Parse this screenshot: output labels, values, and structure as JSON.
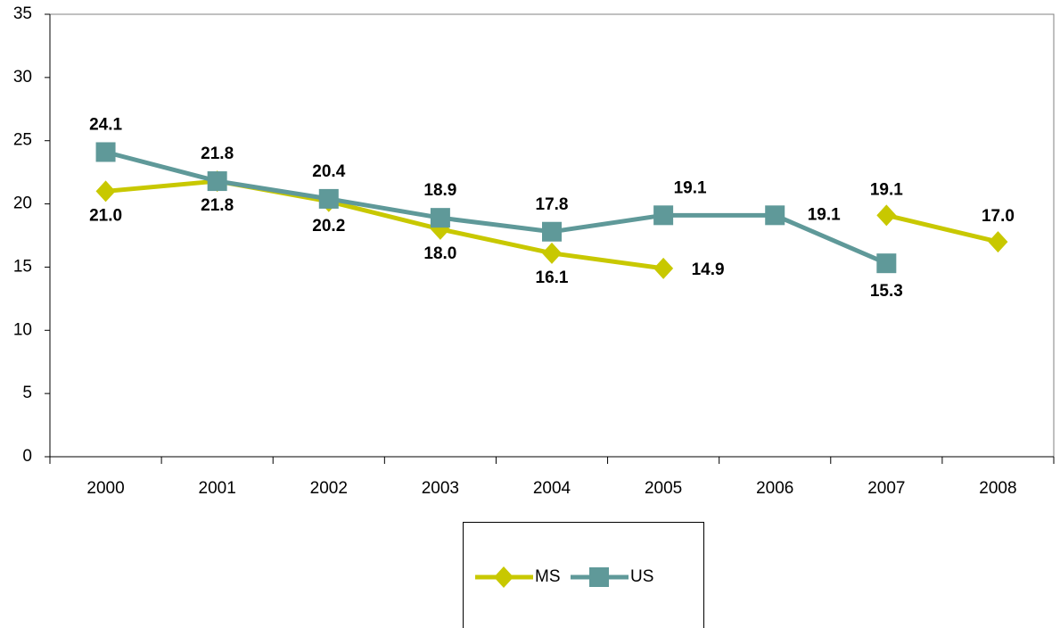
{
  "chart_data": {
    "type": "line",
    "categories": [
      "2000",
      "2001",
      "2002",
      "2003",
      "2004",
      "2005",
      "2006",
      "2007",
      "2008"
    ],
    "series": [
      {
        "name": "MS",
        "color": "#c8c800",
        "values": [
          21.0,
          21.8,
          20.2,
          18.0,
          16.1,
          14.9,
          null,
          19.1,
          17.0
        ],
        "value_labels": [
          "21.0",
          "21.8",
          "20.2",
          "18.0",
          "16.1",
          "14.9",
          null,
          "19.1",
          "17.0"
        ]
      },
      {
        "name": "US",
        "color": "#5f9999",
        "values": [
          24.1,
          21.8,
          20.4,
          18.9,
          17.8,
          19.1,
          19.1,
          15.3,
          null
        ],
        "value_labels": [
          "24.1",
          "21.8",
          "20.4",
          "18.9",
          "17.8",
          "19.1",
          "19.1",
          "15.3",
          null
        ]
      }
    ],
    "ylim": [
      0,
      35
    ],
    "yticks": [
      0,
      5,
      10,
      15,
      20,
      25,
      30,
      35
    ],
    "grid": false,
    "legend": "bottom"
  }
}
